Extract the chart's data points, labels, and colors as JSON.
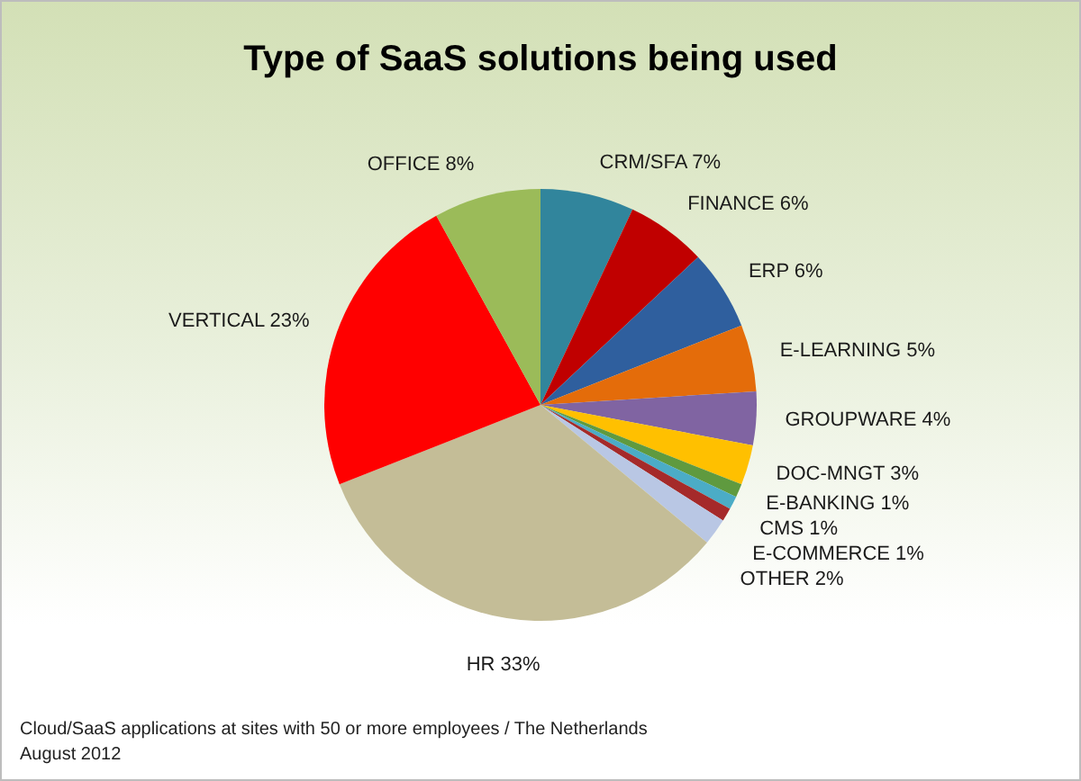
{
  "chart_data": {
    "type": "pie",
    "title": "Type of SaaS solutions being used",
    "categories": [
      "CRM/SFA",
      "FINANCE",
      "ERP",
      "E-LEARNING",
      "GROUPWARE",
      "DOC-MNGT",
      "E-BANKING",
      "CMS",
      "E-COMMERCE",
      "OTHER",
      "HR",
      "VERTICAL",
      "OFFICE"
    ],
    "values": [
      7,
      6,
      6,
      5,
      4,
      3,
      1,
      1,
      1,
      2,
      33,
      23,
      8
    ],
    "value_labels": [
      "7%",
      "6%",
      "6%",
      "5%",
      "4%",
      "3%",
      "1%",
      "1%",
      "1%",
      "2%",
      "33%",
      "23%",
      "8%"
    ],
    "colors": [
      "#31859c",
      "#c00000",
      "#2f5f9e",
      "#e46c0a",
      "#8064a2",
      "#ffc000",
      "#5f9a3f",
      "#4bacc6",
      "#a52a2a",
      "#b9c7e4",
      "#c4bd97",
      "#ff0000",
      "#9bbb59"
    ],
    "annotations": [
      "Cloud/SaaS applications at sites with 50 or more employees / The Netherlands",
      "August 2012"
    ]
  }
}
